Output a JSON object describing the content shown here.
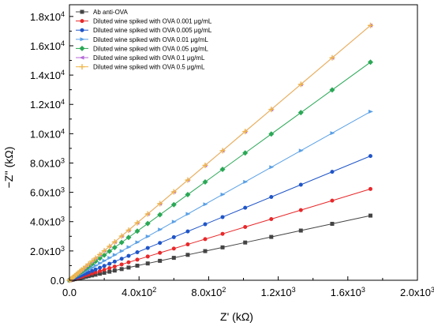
{
  "chart_data": {
    "type": "scatter",
    "xlabel": "Z' (kΩ)",
    "ylabel": "−Z'' (kΩ)",
    "xlim": [
      0,
      2000
    ],
    "ylim": [
      0,
      18800
    ],
    "legend_position": "top-left",
    "x_ticks": [
      {
        "value": 0,
        "label": "0.0"
      },
      {
        "value": 400,
        "label": "4.0x10",
        "exp": "2"
      },
      {
        "value": 800,
        "label": "8.0x10",
        "exp": "2"
      },
      {
        "value": 1200,
        "label": "1.2x10",
        "exp": "3"
      },
      {
        "value": 1600,
        "label": "1.6x10",
        "exp": "3"
      },
      {
        "value": 2000,
        "label": "2.0x10",
        "exp": "3"
      }
    ],
    "y_ticks": [
      {
        "value": 0,
        "label": "0.0"
      },
      {
        "value": 2000,
        "label": "2.0x10",
        "exp": "3"
      },
      {
        "value": 4000,
        "label": "4.0x10",
        "exp": "3"
      },
      {
        "value": 6000,
        "label": "6.0x10",
        "exp": "3"
      },
      {
        "value": 8000,
        "label": "8.0x10",
        "exp": "3"
      },
      {
        "value": 10000,
        "label": "1.0x10",
        "exp": "4"
      },
      {
        "value": 12000,
        "label": "1.2x10",
        "exp": "4"
      },
      {
        "value": 14000,
        "label": "1.4x10",
        "exp": "4"
      },
      {
        "value": 16000,
        "label": "1.6x10",
        "exp": "4"
      },
      {
        "value": 18000,
        "label": "1.8x10",
        "exp": "4"
      }
    ],
    "x": [
      0,
      5,
      10,
      15,
      20,
      30,
      40,
      50,
      60,
      70,
      80,
      95,
      110,
      130,
      150,
      175,
      200,
      230,
      260,
      300,
      340,
      390,
      450,
      520,
      600,
      680,
      780,
      880,
      1010,
      1160,
      1330,
      1510,
      1730
    ],
    "series": [
      {
        "name": "Ab anti-OVA",
        "color": "#444444",
        "marker": "square",
        "slope": 2.55
      },
      {
        "name": "Diluted wine spiked with OVA 0.001 μg/mL",
        "color": "#e8282a",
        "marker": "circle",
        "slope": 3.6
      },
      {
        "name": "Diluted wine spiked with OVA 0.005 μg/mL",
        "color": "#1f55c8",
        "marker": "circle",
        "slope": 4.9
      },
      {
        "name": "Diluted wine spiked with OVA 0.01 μg/mL",
        "color": "#5aa0e6",
        "marker": "triangle-right",
        "slope": 6.65
      },
      {
        "name": "Diluted wine spiked with OVA 0.05 μg/mL",
        "color": "#2aa856",
        "marker": "diamond",
        "slope": 8.6
      },
      {
        "name": "Diluted wine spiked with OVA 0.1 μg/mL",
        "color": "#b46ad8",
        "marker": "triangle-left",
        "slope": 10.05
      },
      {
        "name": "Diluted wine spiked with OVA 0.5 μg/mL",
        "color": "#f0b84c",
        "marker": "plus",
        "slope": 10.05
      }
    ]
  }
}
